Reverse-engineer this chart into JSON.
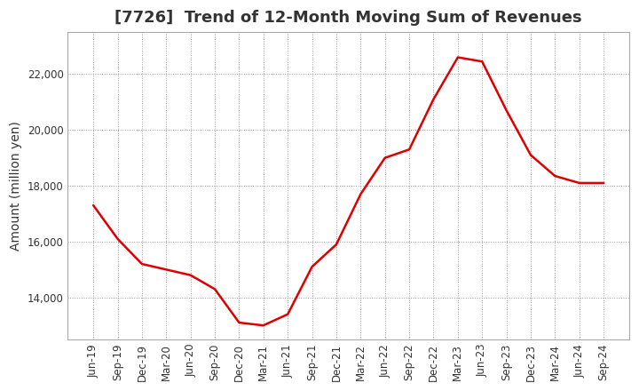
{
  "title": "[7726]  Trend of 12-Month Moving Sum of Revenues",
  "ylabel": "Amount (million yen)",
  "line_color": "#dd0000",
  "background_color": "#ffffff",
  "plot_bg_color": "#ffffff",
  "grid_color": "#999999",
  "x_labels": [
    "Jun-19",
    "Sep-19",
    "Dec-19",
    "Mar-20",
    "Jun-20",
    "Sep-20",
    "Dec-20",
    "Mar-21",
    "Jun-21",
    "Sep-21",
    "Dec-21",
    "Mar-22",
    "Jun-22",
    "Sep-22",
    "Dec-22",
    "Mar-23",
    "Jun-23",
    "Sep-23",
    "Dec-23",
    "Mar-24",
    "Jun-24",
    "Sep-24"
  ],
  "y_values": [
    17300,
    16100,
    15200,
    15000,
    14800,
    14300,
    13100,
    13000,
    13400,
    15100,
    15900,
    17700,
    19000,
    19300,
    21100,
    22600,
    22450,
    20700,
    19100,
    18350,
    18100,
    18100
  ],
  "ylim": [
    12500,
    23500
  ],
  "yticks": [
    14000,
    16000,
    18000,
    20000,
    22000
  ],
  "title_fontsize": 13,
  "title_color": "#333333",
  "axis_label_fontsize": 10,
  "tick_fontsize": 8.5
}
